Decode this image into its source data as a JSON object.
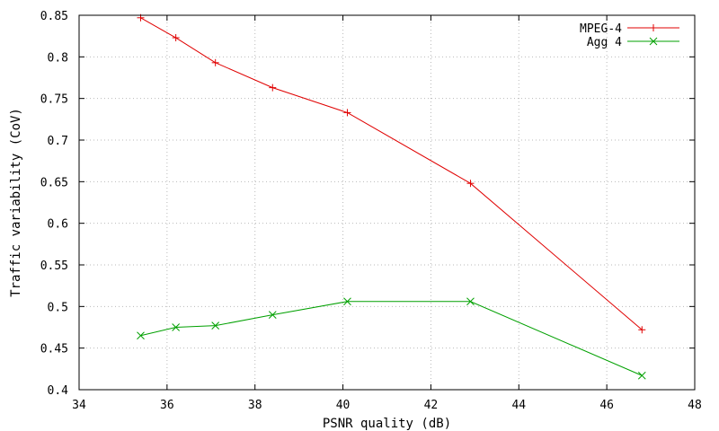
{
  "chart_data": {
    "type": "line",
    "title": "",
    "xlabel": "PSNR quality (dB)",
    "ylabel": "Traffic variability (CoV)",
    "xlim": [
      34,
      48
    ],
    "ylim": [
      0.4,
      0.85
    ],
    "x_ticks": [
      34,
      36,
      38,
      40,
      42,
      44,
      46,
      48
    ],
    "y_ticks": [
      0.4,
      0.45,
      0.5,
      0.55,
      0.6,
      0.65,
      0.7,
      0.75,
      0.8,
      0.85
    ],
    "x_tick_labels": [
      "34",
      "36",
      "38",
      "40",
      "42",
      "44",
      "46",
      "48"
    ],
    "y_tick_labels": [
      "0.4",
      "0.45",
      "0.5",
      "0.55",
      "0.6",
      "0.65",
      "0.7",
      "0.75",
      "0.8",
      "0.85"
    ],
    "grid": true,
    "legend_position": "top-right",
    "series": [
      {
        "name": "MPEG-4",
        "color": "#e00000",
        "marker": "plus",
        "points": [
          {
            "x": 35.4,
            "y": 0.847
          },
          {
            "x": 36.2,
            "y": 0.823
          },
          {
            "x": 37.1,
            "y": 0.793
          },
          {
            "x": 38.4,
            "y": 0.763
          },
          {
            "x": 40.1,
            "y": 0.733
          },
          {
            "x": 42.9,
            "y": 0.648
          },
          {
            "x": 46.8,
            "y": 0.472
          }
        ]
      },
      {
        "name": "Agg 4",
        "color": "#00a000",
        "marker": "cross",
        "points": [
          {
            "x": 35.4,
            "y": 0.465
          },
          {
            "x": 36.2,
            "y": 0.475
          },
          {
            "x": 37.1,
            "y": 0.477
          },
          {
            "x": 38.4,
            "y": 0.49
          },
          {
            "x": 40.1,
            "y": 0.506
          },
          {
            "x": 42.9,
            "y": 0.506
          },
          {
            "x": 46.8,
            "y": 0.417
          }
        ]
      }
    ]
  }
}
